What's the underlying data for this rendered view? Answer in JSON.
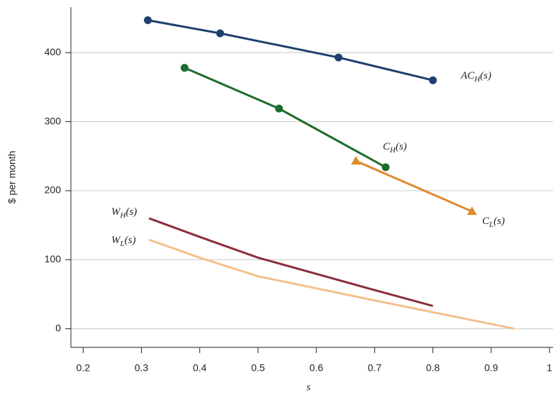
{
  "chart_data": {
    "type": "line",
    "y_label": "$ per month",
    "x_label": "s",
    "xlim": [
      0.179,
      1.006
    ],
    "ylim": [
      -27,
      466
    ],
    "xticks": [
      0.2,
      0.3,
      0.4,
      0.5,
      0.6,
      0.7,
      0.8,
      0.9,
      1
    ],
    "yticks": [
      0,
      100,
      200,
      300,
      400
    ],
    "grid": true,
    "series": [
      {
        "label": [
          "AC",
          "H",
          "(s)"
        ],
        "color": "#1f3f6e",
        "marker": "circle",
        "x": [
          0.311,
          0.435,
          0.638,
          0.8
        ],
        "values": [
          447,
          428,
          393,
          360
        ]
      },
      {
        "label": [
          "C",
          "H",
          "(s)"
        ],
        "color": "#1e6b2e",
        "marker": "circle",
        "x": [
          0.374,
          0.536,
          0.719
        ],
        "values": [
          378,
          319,
          234
        ]
      },
      {
        "label": [
          "C",
          "L",
          "(s)"
        ],
        "color": "#e08a2c",
        "marker": "triangle",
        "x": [
          0.668,
          0.867
        ],
        "values": [
          243,
          170
        ]
      },
      {
        "label": [
          "W",
          "H",
          "(s)"
        ],
        "color": "#8b2e3c",
        "marker": "none",
        "x": [
          0.313,
          0.4,
          0.5,
          0.7,
          0.8
        ],
        "values": [
          160,
          133,
          103,
          56,
          33
        ]
      },
      {
        "label": [
          "W",
          "L",
          "(s)"
        ],
        "color": "#f5c08a",
        "marker": "none",
        "x": [
          0.313,
          0.4,
          0.5,
          0.7,
          0.94
        ],
        "values": [
          129,
          103,
          76,
          41,
          0
        ]
      }
    ]
  }
}
